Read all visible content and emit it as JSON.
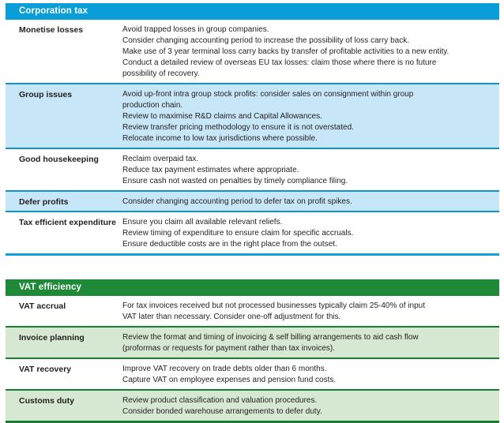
{
  "colors": {
    "text": "#231f20",
    "ct_header": "#0a9ed9",
    "ct_shade": "#c7e7f8",
    "ct_rule": "#0e93ce",
    "ct_end": "#14a0d6",
    "vat_header": "#1e8a37",
    "vat_shade": "#d6e8d1",
    "vat_rule": "#1a7c31"
  },
  "sections": [
    {
      "title": "Corporation tax",
      "rows": [
        {
          "label": "Monetise losses",
          "items": [
            "Avoid trapped losses in group companies.",
            "Consider changing accounting period to increase the possibility of loss carry back.",
            "Make use of 3 year terminal loss carry backs by transfer of profitable activities to a new entity.",
            "Conduct a detailed review of overseas EU tax losses: claim those where there is no future\npossibility of recovery."
          ]
        },
        {
          "label": "Group issues",
          "items": [
            "Avoid up-front intra group stock profits: consider sales on consignment within group\nproduction chain.",
            "Review to maximise R&D claims and Capital Allowances.",
            "Review transfer pricing methodology to ensure it is not overstated.",
            "Relocate income to low tax jurisdictions where possible."
          ]
        },
        {
          "label": "Good housekeeping",
          "items": [
            "Reclaim overpaid tax.",
            "Reduce tax payment estimates where appropriate.",
            "Ensure cash not wasted on penalties by timely compliance filing."
          ]
        },
        {
          "label": "Defer profits",
          "items": [
            "Consider changing accounting period to defer tax on profit spikes."
          ]
        },
        {
          "label": "Tax efficient expenditure",
          "items": [
            "Ensure you claim all available relevant reliefs.",
            "Review timing of expenditure to ensure claim for specific accruals.",
            "Ensure deductible costs are in the right place from the outset."
          ]
        }
      ]
    },
    {
      "title": "VAT efficiency",
      "rows": [
        {
          "label": "VAT accrual",
          "items": [
            "For tax invoices received but not processed businesses typically claim 25-40% of input\nVAT later than necessary. Consider one-off adjustment for this."
          ]
        },
        {
          "label": "Invoice planning",
          "items": [
            "Review the format and timing of invoicing & self billing arrangements to aid cash flow\n(proformas or requests for payment rather than tax invoices)."
          ]
        },
        {
          "label": "VAT recovery",
          "items": [
            "Improve VAT recovery on trade debts older than 6 months.",
            "Capture VAT on employee expenses and pension fund costs."
          ]
        },
        {
          "label": "Customs duty",
          "items": [
            "Review product classification and valuation procedures.",
            "Consider bonded warehouse arrangements to defer duty."
          ]
        }
      ]
    }
  ]
}
